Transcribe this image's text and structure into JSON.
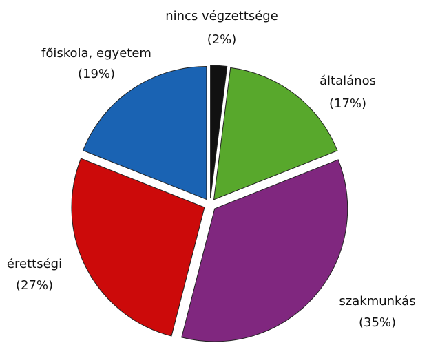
{
  "chart_data": {
    "type": "pie",
    "categories": [
      "nincs végzettsége",
      "általános",
      "szakmunkás",
      "érettségi",
      "főiskola, egyetem"
    ],
    "values": [
      2,
      17,
      35,
      27,
      19
    ],
    "value_labels": [
      "(2%)",
      "(17%)",
      "(35%)",
      "(27%)",
      "(19%)"
    ],
    "colors": [
      "#111111",
      "#58a82c",
      "#80277f",
      "#cc0a0a",
      "#1a63b3"
    ]
  }
}
